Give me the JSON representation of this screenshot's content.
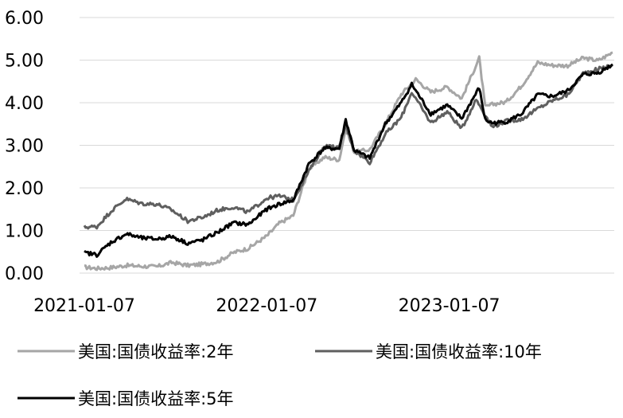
{
  "chart_data": {
    "type": "line",
    "title": "",
    "xlabel": "",
    "ylabel": "",
    "x_range": [
      "2021-01-07",
      "2023-11-30"
    ],
    "ylim": [
      0,
      6
    ],
    "yticks": [
      "0.00",
      "1.00",
      "2.00",
      "3.00",
      "4.00",
      "5.00",
      "6.00"
    ],
    "xticks": [
      {
        "date": "2021-01-07",
        "label": "2021-01-07"
      },
      {
        "date": "2022-01-07",
        "label": "2022-01-07"
      },
      {
        "date": "2023-01-07",
        "label": "2023-01-07"
      }
    ],
    "grid": "horizontal",
    "legend_position": "bottom",
    "series": [
      {
        "name": "美国:国债收益率:2年",
        "color": "#a6a6a6",
        "points": [
          [
            "2021-01-07",
            0.14
          ],
          [
            "2021-02-01",
            0.11
          ],
          [
            "2021-03-01",
            0.13
          ],
          [
            "2021-04-01",
            0.18
          ],
          [
            "2021-05-03",
            0.16
          ],
          [
            "2021-06-01",
            0.15
          ],
          [
            "2021-07-01",
            0.25
          ],
          [
            "2021-08-02",
            0.18
          ],
          [
            "2021-09-01",
            0.21
          ],
          [
            "2021-10-01",
            0.27
          ],
          [
            "2021-11-01",
            0.48
          ],
          [
            "2021-12-01",
            0.58
          ],
          [
            "2022-01-07",
            0.87
          ],
          [
            "2022-02-01",
            1.17
          ],
          [
            "2022-03-01",
            1.35
          ],
          [
            "2022-04-01",
            2.44
          ],
          [
            "2022-05-02",
            2.72
          ],
          [
            "2022-06-01",
            2.66
          ],
          [
            "2022-06-14",
            3.4
          ],
          [
            "2022-07-01",
            2.84
          ],
          [
            "2022-08-01",
            2.9
          ],
          [
            "2022-09-01",
            3.5
          ],
          [
            "2022-10-03",
            4.2
          ],
          [
            "2022-11-01",
            4.55
          ],
          [
            "2022-12-01",
            4.25
          ],
          [
            "2023-01-03",
            4.37
          ],
          [
            "2023-02-01",
            4.1
          ],
          [
            "2023-03-08",
            5.05
          ],
          [
            "2023-03-20",
            3.9
          ],
          [
            "2023-04-03",
            3.96
          ],
          [
            "2023-05-01",
            4.02
          ],
          [
            "2023-06-01",
            4.4
          ],
          [
            "2023-07-03",
            4.94
          ],
          [
            "2023-08-01",
            4.88
          ],
          [
            "2023-09-01",
            4.87
          ],
          [
            "2023-10-02",
            5.05
          ],
          [
            "2023-11-01",
            4.99
          ],
          [
            "2023-11-30",
            5.18
          ]
        ]
      },
      {
        "name": "美国:国债收益率:10年",
        "color": "#5f5f5f",
        "points": [
          [
            "2021-01-07",
            1.08
          ],
          [
            "2021-02-01",
            1.09
          ],
          [
            "2021-03-01",
            1.45
          ],
          [
            "2021-03-31",
            1.74
          ],
          [
            "2021-05-03",
            1.63
          ],
          [
            "2021-06-01",
            1.62
          ],
          [
            "2021-07-01",
            1.48
          ],
          [
            "2021-08-02",
            1.22
          ],
          [
            "2021-09-01",
            1.31
          ],
          [
            "2021-10-01",
            1.48
          ],
          [
            "2021-11-01",
            1.55
          ],
          [
            "2021-12-01",
            1.43
          ],
          [
            "2022-01-07",
            1.76
          ],
          [
            "2022-02-01",
            1.81
          ],
          [
            "2022-03-01",
            1.72
          ],
          [
            "2022-04-01",
            2.39
          ],
          [
            "2022-05-02",
            2.99
          ],
          [
            "2022-06-01",
            2.94
          ],
          [
            "2022-06-14",
            3.48
          ],
          [
            "2022-07-01",
            2.88
          ],
          [
            "2022-08-01",
            2.6
          ],
          [
            "2022-09-01",
            3.26
          ],
          [
            "2022-10-03",
            3.65
          ],
          [
            "2022-10-24",
            4.25
          ],
          [
            "2022-12-01",
            3.53
          ],
          [
            "2023-01-03",
            3.79
          ],
          [
            "2023-02-01",
            3.39
          ],
          [
            "2023-03-02",
            4.08
          ],
          [
            "2023-04-03",
            3.43
          ],
          [
            "2023-05-01",
            3.57
          ],
          [
            "2023-06-01",
            3.61
          ],
          [
            "2023-07-03",
            3.86
          ],
          [
            "2023-08-01",
            4.05
          ],
          [
            "2023-09-01",
            4.18
          ],
          [
            "2023-10-02",
            4.69
          ],
          [
            "2023-11-01",
            4.79
          ],
          [
            "2023-11-30",
            4.88
          ]
        ]
      },
      {
        "name": "美国:国债收益率:5年",
        "color": "#000000",
        "points": [
          [
            "2021-01-07",
            0.48
          ],
          [
            "2021-02-01",
            0.43
          ],
          [
            "2021-03-01",
            0.72
          ],
          [
            "2021-04-01",
            0.92
          ],
          [
            "2021-05-03",
            0.82
          ],
          [
            "2021-06-01",
            0.8
          ],
          [
            "2021-07-01",
            0.86
          ],
          [
            "2021-08-02",
            0.7
          ],
          [
            "2021-09-01",
            0.78
          ],
          [
            "2021-10-01",
            0.96
          ],
          [
            "2021-11-01",
            1.18
          ],
          [
            "2021-12-01",
            1.14
          ],
          [
            "2022-01-07",
            1.5
          ],
          [
            "2022-02-01",
            1.62
          ],
          [
            "2022-03-01",
            1.71
          ],
          [
            "2022-04-01",
            2.56
          ],
          [
            "2022-05-02",
            2.93
          ],
          [
            "2022-06-01",
            2.92
          ],
          [
            "2022-06-14",
            3.6
          ],
          [
            "2022-07-01",
            2.88
          ],
          [
            "2022-08-01",
            2.7
          ],
          [
            "2022-09-01",
            3.5
          ],
          [
            "2022-10-03",
            4.0
          ],
          [
            "2022-10-24",
            4.43
          ],
          [
            "2022-12-01",
            3.74
          ],
          [
            "2023-01-03",
            3.94
          ],
          [
            "2023-02-01",
            3.63
          ],
          [
            "2023-03-08",
            4.35
          ],
          [
            "2023-03-20",
            3.6
          ],
          [
            "2023-04-03",
            3.52
          ],
          [
            "2023-05-01",
            3.55
          ],
          [
            "2023-06-01",
            3.74
          ],
          [
            "2023-07-03",
            4.19
          ],
          [
            "2023-08-01",
            4.15
          ],
          [
            "2023-09-01",
            4.28
          ],
          [
            "2023-10-02",
            4.66
          ],
          [
            "2023-11-01",
            4.7
          ],
          [
            "2023-11-30",
            4.9
          ]
        ]
      }
    ]
  }
}
